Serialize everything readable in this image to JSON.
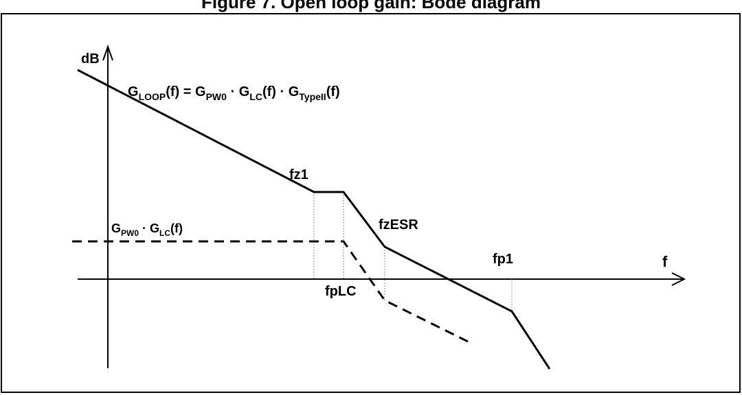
{
  "header_title": "Figure 7. Open loop gain: Bode diagram",
  "axes": {
    "y_label": "dB",
    "x_label": "f"
  },
  "loop_gain_equation": {
    "g1": "G",
    "s1": "LOOP",
    "t1": "(f) = ",
    "g2": "G",
    "s2": "PW0",
    "t2": " · ",
    "g3": "G",
    "s3": "LC",
    "t3": "(f) · ",
    "g4": "G",
    "s4": "TypeII",
    "t4": "(f)"
  },
  "plant_equation": {
    "g1": "G",
    "s1": "PW0",
    "t1": " · ",
    "g2": "G",
    "s2": "LC",
    "t2": "(f)"
  },
  "frequency_markers": {
    "fz1": "fz1",
    "fpLC": "fpLC",
    "fzESR": "fzESR",
    "fp1": "fp1"
  },
  "colors": {
    "line": "#000000",
    "guide": "#888888",
    "background": "#ffffff"
  }
}
